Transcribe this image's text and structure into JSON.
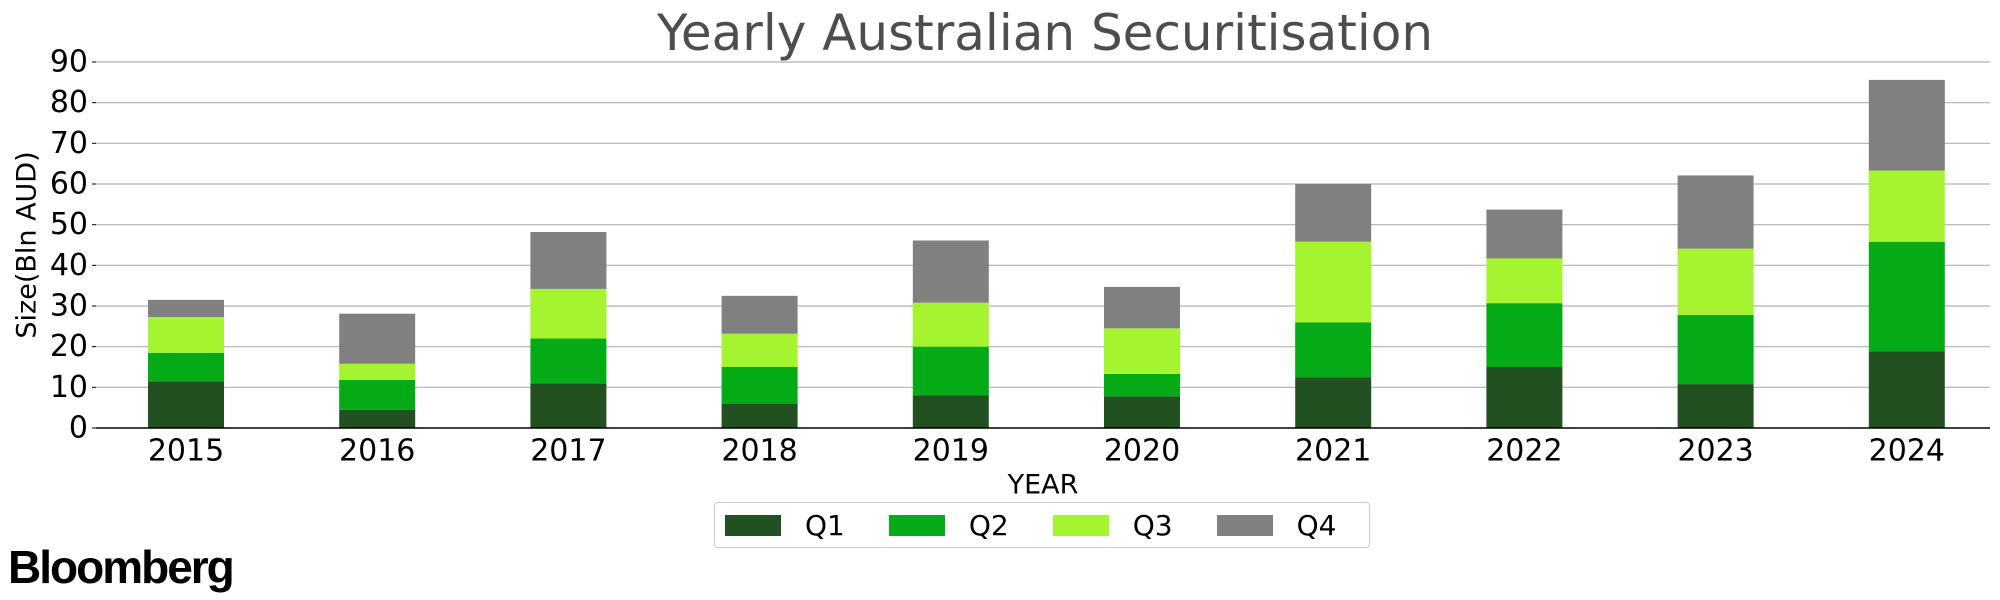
{
  "chart_data": {
    "type": "bar",
    "stacked": true,
    "title": "Yearly Australian Securitisation",
    "xlabel": "YEAR",
    "ylabel": "Size(Bln AUD)",
    "ylim": [
      0,
      90
    ],
    "yticks": [
      "0",
      "10",
      "20",
      "30",
      "40",
      "50",
      "60",
      "70",
      "80",
      "90"
    ],
    "grid": "horizontal",
    "legend_position": "bottom-center",
    "categories": [
      "2015",
      "2016",
      "2017",
      "2018",
      "2019",
      "2020",
      "2021",
      "2022",
      "2023",
      "2024"
    ],
    "series": [
      {
        "name": "Q1",
        "color": "#225020",
        "values": [
          11.5,
          4.5,
          11.0,
          6.0,
          8.0,
          7.8,
          12.5,
          15.0,
          10.8,
          18.8
        ]
      },
      {
        "name": "Q2",
        "color": "#04ab16",
        "values": [
          7.0,
          7.3,
          11.0,
          9.0,
          12.0,
          5.5,
          13.5,
          15.7,
          17.0,
          27.0
        ]
      },
      {
        "name": "Q3",
        "color": "#a4f530",
        "values": [
          8.8,
          4.0,
          12.2,
          8.2,
          10.8,
          11.2,
          19.8,
          11.0,
          16.3,
          17.5
        ]
      },
      {
        "name": "Q4",
        "color": "#808080",
        "values": [
          4.2,
          12.3,
          14.0,
          9.3,
          15.3,
          10.2,
          14.2,
          12.0,
          18.0,
          22.3
        ]
      }
    ]
  },
  "brand": {
    "logo_text": "Bloomberg"
  }
}
